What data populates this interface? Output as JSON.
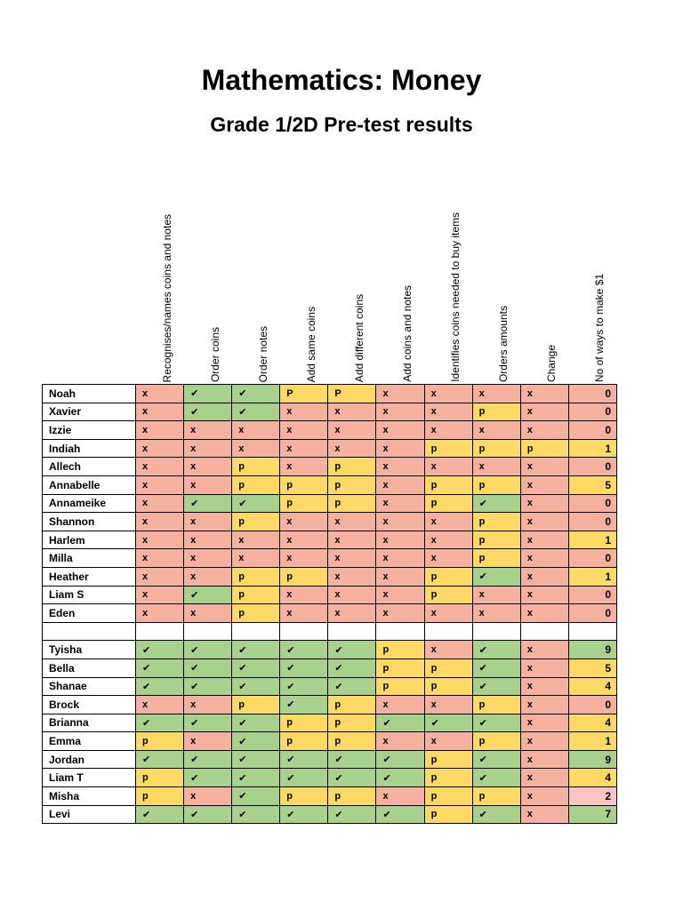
{
  "header": {
    "title": "Mathematics: Money",
    "subtitle": "Grade 1/2D Pre-test results"
  },
  "columns": [
    "Recognises/names coins and notes",
    "Order coins",
    "Order notes",
    "Add  same coins",
    "Add different coins",
    "Add coins and notes",
    "Identifies coins needed to buy items",
    "Orders amounts",
    "Change",
    "No of ways to make $1"
  ],
  "mark_colors": {
    "x": "#f4b19f",
    "✔": "#a9d18e",
    "p": "#ffd966",
    "P": "#ffd966"
  },
  "score_colors": {
    "0": "#f4b19f",
    "1": "#ffd966",
    "2": "#f9c4c4",
    "4": "#ffd966",
    "5": "#ffd966",
    "7": "#a9d18e",
    "9": "#a9d18e"
  },
  "groups": [
    {
      "rows": [
        {
          "name": "Noah",
          "marks": [
            "x",
            "✔",
            "✔",
            "P",
            "P",
            "x",
            "x",
            "x",
            "x"
          ],
          "score": 0
        },
        {
          "name": "Xavier",
          "marks": [
            "x",
            "✔",
            "✔",
            "x",
            "x",
            "x",
            "x",
            "p",
            "x"
          ],
          "score": 0
        },
        {
          "name": "Izzie",
          "marks": [
            "x",
            "x",
            "x",
            "x",
            "x",
            "x",
            "x",
            "x",
            "x"
          ],
          "score": 0
        },
        {
          "name": "Indiah",
          "marks": [
            "x",
            "x",
            "x",
            "x",
            "x",
            "x",
            "p",
            "p",
            "p"
          ],
          "score": 1
        },
        {
          "name": "Allech",
          "marks": [
            "x",
            "x",
            "p",
            "x",
            "p",
            "x",
            "x",
            "x",
            "x"
          ],
          "score": 0
        },
        {
          "name": "Annabelle",
          "marks": [
            "x",
            "x",
            "p",
            "p",
            "p",
            "x",
            "p",
            "p",
            "x"
          ],
          "score": 5
        },
        {
          "name": "Annameike",
          "marks": [
            "x",
            "✔",
            "✔",
            "p",
            "p",
            "x",
            "p",
            "✔",
            "x"
          ],
          "score": 0
        },
        {
          "name": "Shannon",
          "marks": [
            "x",
            "x",
            "p",
            "x",
            "x",
            "x",
            "x",
            "p",
            "x"
          ],
          "score": 0
        },
        {
          "name": "Harlem",
          "marks": [
            "x",
            "x",
            "x",
            "x",
            "x",
            "x",
            "x",
            "p",
            "x"
          ],
          "score": 1
        },
        {
          "name": "Milla",
          "marks": [
            "x",
            "x",
            "x",
            "x",
            "x",
            "x",
            "x",
            "p",
            "x"
          ],
          "score": 0
        },
        {
          "name": "Heather",
          "marks": [
            "x",
            "x",
            "p",
            "p",
            "x",
            "x",
            "p",
            "✔",
            "x"
          ],
          "score": 1
        },
        {
          "name": "Liam S",
          "marks": [
            "x",
            "✔",
            "p",
            "x",
            "x",
            "x",
            "p",
            "x",
            "x"
          ],
          "score": 0
        },
        {
          "name": "Eden",
          "marks": [
            "x",
            "x",
            "p",
            "x",
            "x",
            "x",
            "x",
            "x",
            "x"
          ],
          "score": 0
        }
      ]
    },
    {
      "rows": [
        {
          "name": "Tyisha",
          "marks": [
            "✔",
            "✔",
            "✔",
            "✔",
            "✔",
            "p",
            "x",
            "✔",
            "x"
          ],
          "score": 9
        },
        {
          "name": "Bella",
          "marks": [
            "✔",
            "✔",
            "✔",
            "✔",
            "✔",
            "p",
            "p",
            "✔",
            "x"
          ],
          "score": 5
        },
        {
          "name": "Shanae",
          "marks": [
            "✔",
            "✔",
            "✔",
            "✔",
            "✔",
            "p",
            "p",
            "✔",
            "x"
          ],
          "score": 4
        },
        {
          "name": "Brock",
          "marks": [
            "x",
            "x",
            "p",
            "✔",
            "p",
            "x",
            "x",
            "p",
            "x"
          ],
          "score": 0
        },
        {
          "name": "Brianna",
          "marks": [
            "✔",
            "✔",
            "✔",
            "p",
            "p",
            "✔",
            "✔",
            "✔",
            "x"
          ],
          "score": 4
        },
        {
          "name": "Emma",
          "marks": [
            "p",
            "x",
            "✔",
            "p",
            "p",
            "x",
            "x",
            "p",
            "x"
          ],
          "score": 1
        },
        {
          "name": "Jordan",
          "marks": [
            "✔",
            "✔",
            "✔",
            "✔",
            "✔",
            "✔",
            "p",
            "✔",
            "x"
          ],
          "score": 9
        },
        {
          "name": "Liam T",
          "marks": [
            "p",
            "✔",
            "✔",
            "✔",
            "✔",
            "✔",
            "p",
            "✔",
            "x"
          ],
          "score": 4
        },
        {
          "name": "Misha",
          "marks": [
            "p",
            "x",
            "✔",
            "p",
            "p",
            "x",
            "p",
            "p",
            "x"
          ],
          "score": 2
        },
        {
          "name": "Levi",
          "marks": [
            "✔",
            "✔",
            "✔",
            "✔",
            "✔",
            "✔",
            "p",
            "✔",
            "x"
          ],
          "score": 7
        }
      ]
    }
  ]
}
